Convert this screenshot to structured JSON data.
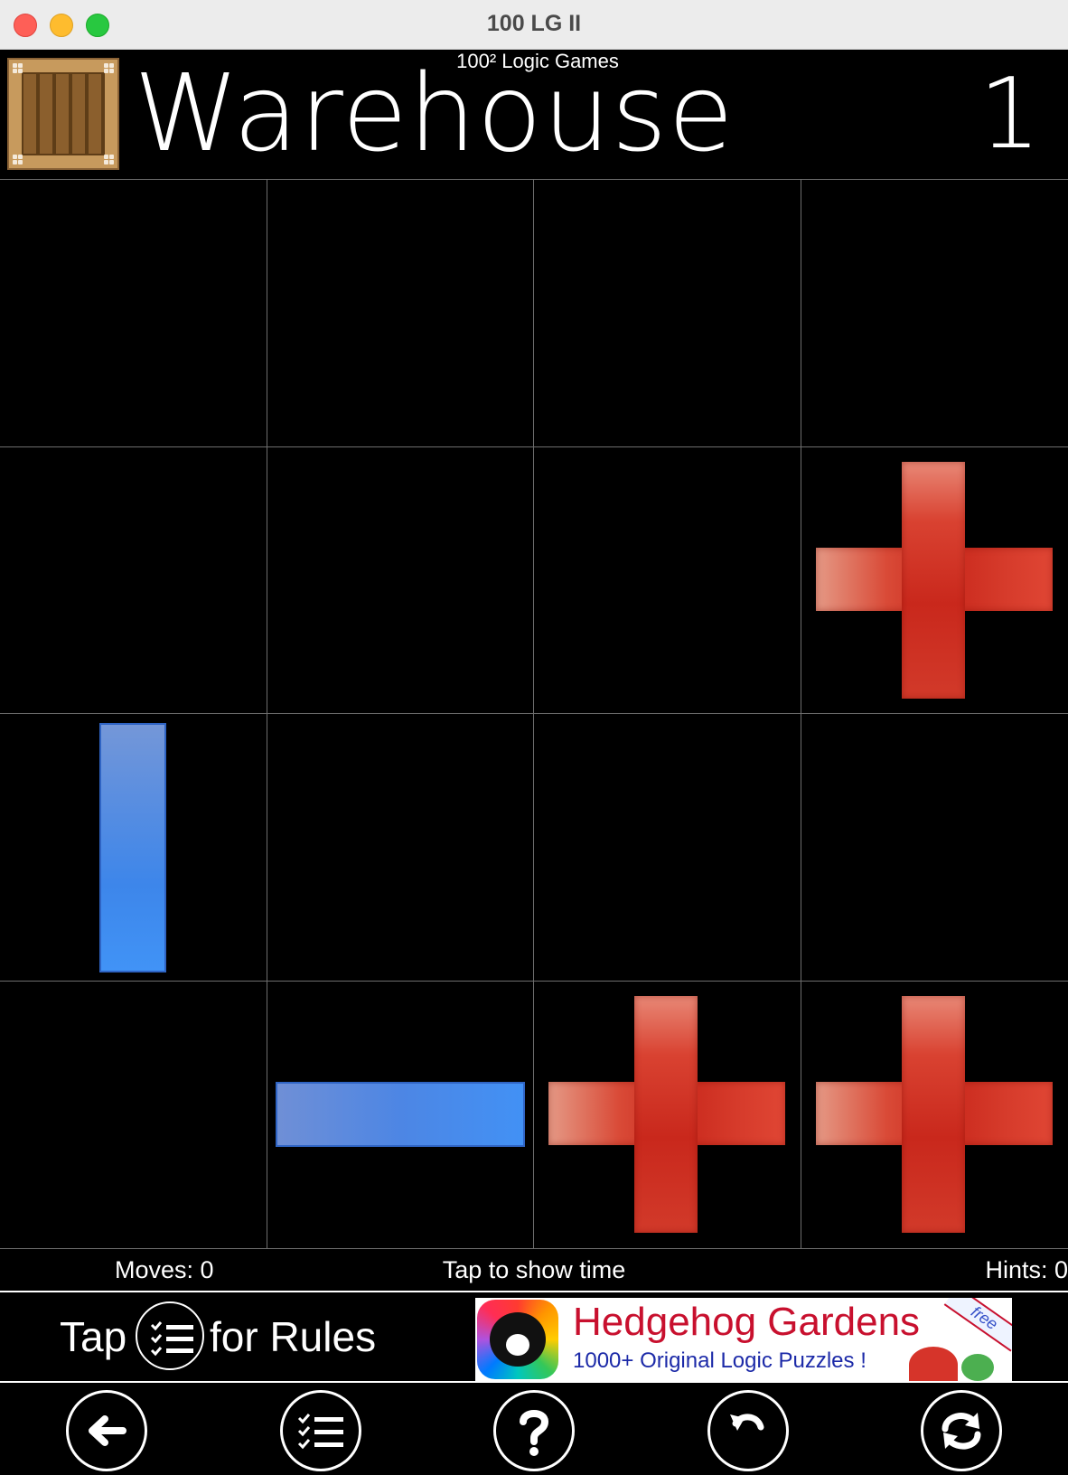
{
  "window": {
    "title": "100 LG II"
  },
  "header": {
    "suite_title": "100² Logic Games",
    "game_title": "Warehouse",
    "level": "1"
  },
  "board": {
    "rows": 4,
    "cols": 4,
    "cells": [
      [
        "",
        "",
        "",
        ""
      ],
      [
        "",
        "",
        "",
        "red-plus"
      ],
      [
        "blue-vertical-bar",
        "",
        "",
        ""
      ],
      [
        "",
        "blue-horizontal-bar",
        "red-plus",
        "red-plus"
      ]
    ],
    "colors": {
      "red": "#c9281c",
      "blue": "#4291f5",
      "grid": "#6e6e6e"
    }
  },
  "status": {
    "moves": "Moves: 0",
    "time": "Tap to show time",
    "hints": "Hints: 0"
  },
  "banner": {
    "tap": "Tap",
    "for_rules": "for Rules",
    "ad_title": "Hedgehog Gardens",
    "ad_subtitle": "1000+ Original Logic Puzzles !",
    "ad_ribbon": "free"
  },
  "toolbar": {
    "buttons": [
      "back-arrow-icon",
      "rules-list-icon",
      "help-question-icon",
      "undo-icon",
      "restart-icon"
    ]
  }
}
